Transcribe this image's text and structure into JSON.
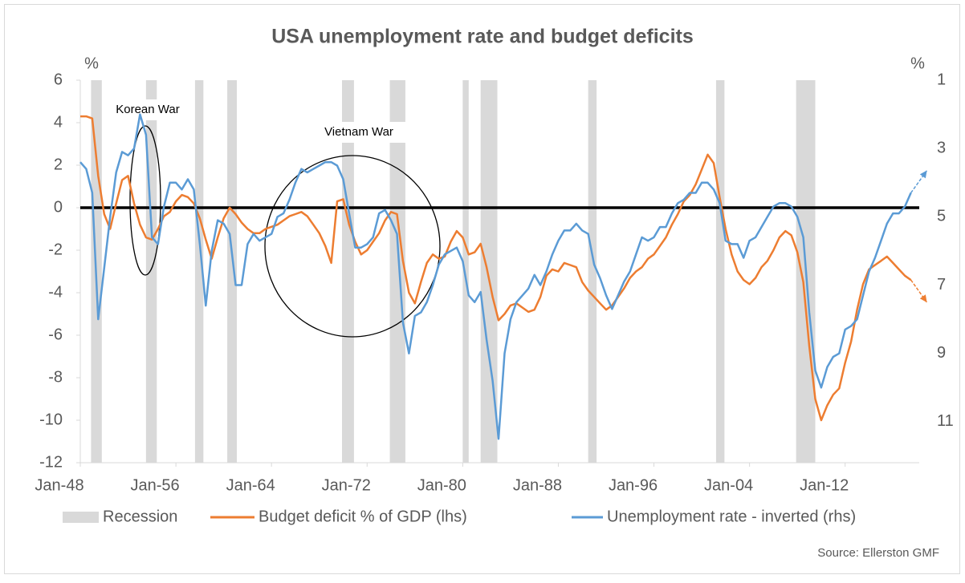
{
  "chart_data": {
    "type": "line",
    "title": "USA unemployment  rate and budget deficits",
    "y_unit": "%",
    "y2_unit": "%",
    "source": "Source: Ellerston GMF",
    "annotations": [
      "Korean War",
      "Vietnam War"
    ],
    "xlim": [
      1948,
      2018.2
    ],
    "xticks": [
      {
        "value": 1948,
        "label": "Jan-48"
      },
      {
        "value": 1956,
        "label": "Jan-56"
      },
      {
        "value": 1964,
        "label": "Jan-64"
      },
      {
        "value": 1972,
        "label": "Jan-72"
      },
      {
        "value": 1980,
        "label": "Jan-80"
      },
      {
        "value": 1988,
        "label": "Jan-88"
      },
      {
        "value": 1996,
        "label": "Jan-96"
      },
      {
        "value": 2004,
        "label": "Jan-04"
      },
      {
        "value": 2012,
        "label": "Jan-12"
      }
    ],
    "ylim": [
      -12,
      6
    ],
    "yticks": [
      6,
      4,
      2,
      0,
      -2,
      -4,
      -6,
      -8,
      -10,
      -12
    ],
    "y2lim": [
      1,
      12.2
    ],
    "y2ticks": [
      1,
      3,
      5,
      7,
      9,
      11
    ],
    "y2_reverse": true,
    "recessions": {
      "name": "Recession",
      "color": "#d9d9d9",
      "spans": [
        [
          1948.9,
          1949.8
        ],
        [
          1953.5,
          1954.4
        ],
        [
          1957.6,
          1958.3
        ],
        [
          1960.3,
          1961.1
        ],
        [
          1969.9,
          1970.9
        ],
        [
          1973.9,
          1975.2
        ],
        [
          1980.0,
          1980.5
        ],
        [
          1981.5,
          1982.9
        ],
        [
          1990.5,
          1991.2
        ],
        [
          2001.2,
          2001.9
        ],
        [
          2007.9,
          2009.5
        ]
      ]
    },
    "x": [
      1948,
      1948.5,
      1949,
      1949.5,
      1950,
      1950.5,
      1951,
      1951.5,
      1952,
      1952.5,
      1953,
      1953.5,
      1954,
      1954.5,
      1955,
      1955.5,
      1956,
      1956.5,
      1957,
      1957.5,
      1958,
      1958.5,
      1959,
      1959.5,
      1960,
      1960.5,
      1961,
      1961.5,
      1962,
      1962.5,
      1963,
      1963.5,
      1964,
      1964.5,
      1965,
      1965.5,
      1966,
      1966.5,
      1967,
      1967.5,
      1968,
      1968.5,
      1969,
      1969.5,
      1970,
      1970.5,
      1971,
      1971.5,
      1972,
      1972.5,
      1973,
      1973.5,
      1974,
      1974.5,
      1975,
      1975.5,
      1976,
      1976.5,
      1977,
      1977.5,
      1978,
      1978.5,
      1979,
      1979.5,
      1980,
      1980.5,
      1981,
      1981.5,
      1982,
      1982.5,
      1983,
      1983.5,
      1984,
      1984.5,
      1985,
      1985.5,
      1986,
      1986.5,
      1987,
      1987.5,
      1988,
      1988.5,
      1989,
      1989.5,
      1990,
      1990.5,
      1991,
      1991.5,
      1992,
      1992.5,
      1993,
      1993.5,
      1994,
      1994.5,
      1995,
      1995.5,
      1996,
      1996.5,
      1997,
      1997.5,
      1998,
      1998.5,
      1999,
      1999.5,
      2000,
      2000.5,
      2001,
      2001.5,
      2002,
      2002.5,
      2003,
      2003.5,
      2004,
      2004.5,
      2005,
      2005.5,
      2006,
      2006.5,
      2007,
      2007.5,
      2008,
      2008.5,
      2009,
      2009.5,
      2010,
      2010.5,
      2011,
      2011.5,
      2012,
      2012.5,
      2013,
      2013.5,
      2014,
      2014.5,
      2015,
      2015.5,
      2016,
      2016.5,
      2017,
      2017.5
    ],
    "series": [
      {
        "name": "Budget deficit % of GDP (lhs)",
        "color": "#ed7d31",
        "axis": "y",
        "values": [
          4.3,
          4.3,
          4.2,
          1.5,
          -0.3,
          -1.0,
          0.2,
          1.3,
          1.5,
          0.2,
          -0.8,
          -1.4,
          -1.5,
          -1.0,
          -0.4,
          -0.2,
          0.3,
          0.6,
          0.5,
          0.2,
          -0.5,
          -1.5,
          -2.4,
          -1.4,
          -0.5,
          0.0,
          -0.3,
          -0.7,
          -1.0,
          -1.2,
          -1.2,
          -1.0,
          -0.9,
          -0.8,
          -0.6,
          -0.4,
          -0.3,
          -0.2,
          -0.4,
          -0.8,
          -1.2,
          -1.8,
          -2.6,
          0.3,
          0.4,
          -0.8,
          -1.6,
          -2.2,
          -2.0,
          -1.6,
          -1.2,
          -0.6,
          -0.2,
          -0.3,
          -2.5,
          -4.0,
          -4.5,
          -3.5,
          -2.6,
          -2.2,
          -2.4,
          -2.3,
          -1.6,
          -1.1,
          -1.4,
          -2.2,
          -2.1,
          -1.7,
          -2.8,
          -4.2,
          -5.3,
          -5.0,
          -4.6,
          -4.5,
          -4.7,
          -4.9,
          -4.8,
          -4.2,
          -3.2,
          -2.9,
          -3.0,
          -2.6,
          -2.7,
          -2.8,
          -3.5,
          -3.9,
          -4.2,
          -4.5,
          -4.8,
          -4.6,
          -4.2,
          -3.8,
          -3.3,
          -3.0,
          -2.8,
          -2.4,
          -2.2,
          -1.8,
          -1.4,
          -0.8,
          -0.3,
          0.3,
          0.6,
          1.1,
          1.8,
          2.5,
          2.1,
          0.5,
          -1.0,
          -2.2,
          -3.0,
          -3.4,
          -3.6,
          -3.3,
          -2.8,
          -2.5,
          -2.0,
          -1.4,
          -1.1,
          -1.3,
          -2.1,
          -3.5,
          -6.5,
          -9.0,
          -10.0,
          -9.3,
          -8.8,
          -8.5,
          -7.3,
          -6.3,
          -4.8,
          -3.6,
          -2.9,
          -2.7,
          -2.5,
          -2.3,
          -2.6,
          -2.9,
          -3.2,
          -3.4
        ]
      },
      {
        "name": "Unemployment rate - inverted (rhs)",
        "color": "#5b9bd5",
        "axis": "y2",
        "values": [
          3.4,
          3.6,
          4.3,
          8.0,
          6.5,
          5.0,
          3.7,
          3.1,
          3.2,
          3.0,
          2.0,
          2.6,
          5.6,
          5.8,
          4.7,
          4.0,
          4.0,
          4.2,
          3.9,
          4.2,
          5.8,
          7.6,
          6.0,
          5.1,
          5.2,
          5.5,
          7.0,
          7.0,
          5.8,
          5.5,
          5.7,
          5.6,
          5.5,
          5.0,
          4.9,
          4.5,
          4.0,
          3.6,
          3.7,
          3.6,
          3.5,
          3.4,
          3.4,
          3.5,
          3.9,
          4.9,
          5.9,
          5.9,
          5.8,
          5.6,
          4.9,
          4.8,
          5.1,
          5.5,
          8.1,
          9.0,
          7.9,
          7.8,
          7.5,
          7.0,
          6.4,
          6.1,
          6.0,
          5.9,
          6.3,
          7.3,
          7.5,
          7.2,
          8.6,
          9.8,
          11.5,
          9.0,
          8.0,
          7.5,
          7.3,
          7.1,
          6.7,
          7.0,
          6.6,
          6.1,
          5.7,
          5.4,
          5.4,
          5.2,
          5.4,
          5.5,
          6.4,
          6.8,
          7.3,
          7.7,
          7.3,
          6.9,
          6.6,
          6.1,
          5.6,
          5.7,
          5.6,
          5.3,
          5.3,
          4.9,
          4.6,
          4.5,
          4.3,
          4.3,
          4.0,
          4.0,
          4.2,
          4.6,
          5.7,
          5.8,
          5.8,
          6.2,
          5.7,
          5.6,
          5.3,
          5.0,
          4.7,
          4.6,
          4.6,
          4.7,
          5.0,
          5.6,
          7.8,
          9.5,
          10.0,
          9.4,
          9.1,
          9.0,
          8.3,
          8.2,
          8.0,
          7.3,
          6.6,
          6.2,
          5.7,
          5.2,
          4.9,
          4.9,
          4.7,
          4.3
        ]
      }
    ]
  }
}
